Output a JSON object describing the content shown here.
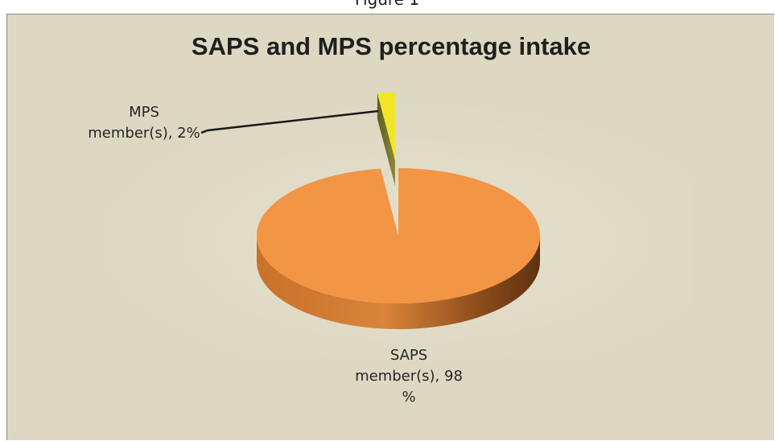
{
  "figure_caption": "Figure 1",
  "chart_data": {
    "type": "pie",
    "title": "SAPS and MPS percentage intake",
    "slices": [
      {
        "label_lines": [
          "SAPS",
          "member(s), 98",
          "%"
        ],
        "value": 98,
        "color": "#f29545",
        "side_color": "#b8621e"
      },
      {
        "label_lines": [
          "MPS",
          "member(s), 2%"
        ],
        "value": 2,
        "color": "#f2e626",
        "side_color": "#74742a"
      }
    ],
    "three_d": true,
    "exploded_slice": "MPS",
    "background_color": "#ddd8c2"
  }
}
